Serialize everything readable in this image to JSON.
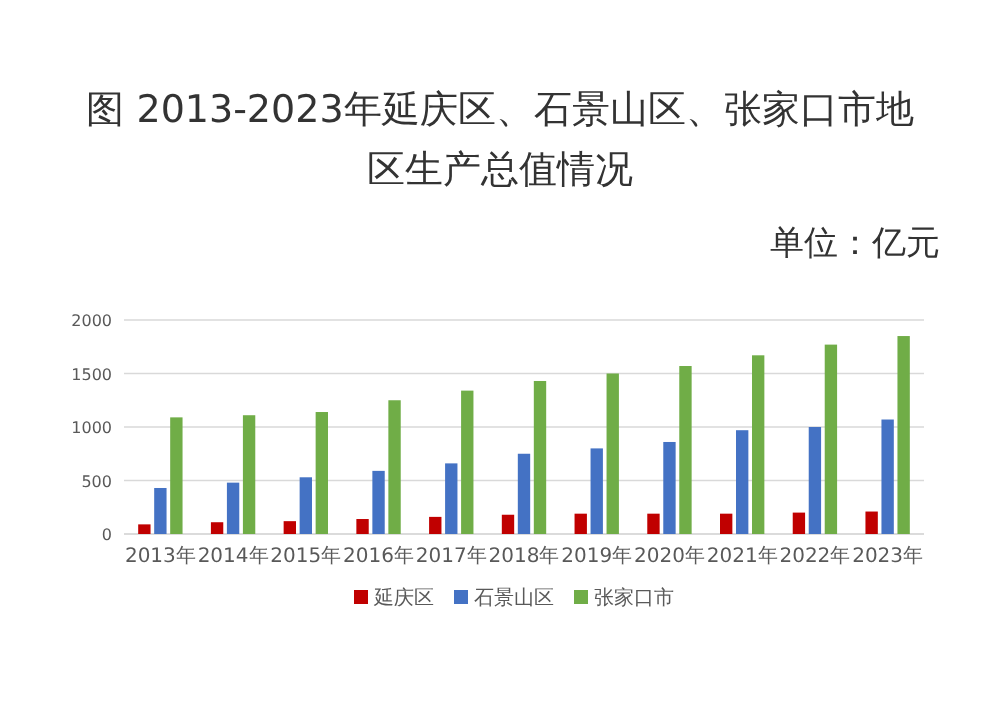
{
  "chart_data": {
    "type": "bar",
    "title": "图 2013-2023年延庆区、石景山区、张家口市地区生产总值情况",
    "annotations": [
      "单位：亿元"
    ],
    "categories": [
      "2013年",
      "2014年",
      "2015年",
      "2016年",
      "2017年",
      "2018年",
      "2019年",
      "2020年",
      "2021年",
      "2022年",
      "2023年"
    ],
    "series": [
      {
        "name": "延庆区",
        "color": "#c00000",
        "values": [
          90,
          110,
          120,
          140,
          160,
          180,
          190,
          190,
          190,
          200,
          210
        ]
      },
      {
        "name": "石景山区",
        "color": "#4472c4",
        "values": [
          430,
          480,
          530,
          590,
          660,
          750,
          800,
          860,
          970,
          1000,
          1070
        ]
      },
      {
        "name": "张家口市",
        "color": "#70ad47",
        "values": [
          1090,
          1110,
          1140,
          1250,
          1340,
          1430,
          1500,
          1570,
          1670,
          1770,
          1850
        ]
      }
    ],
    "ylim": [
      0,
      2000
    ],
    "yticks": [
      0,
      500,
      1000,
      1500,
      2000
    ],
    "grid": "y",
    "legend": "bottom"
  }
}
